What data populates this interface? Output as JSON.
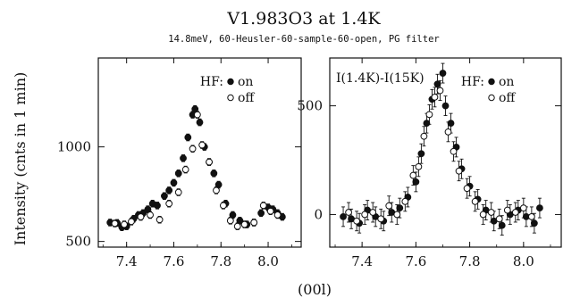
{
  "figure": {
    "title": "V1.983O3 at 1.4K",
    "subtitle": "14.8meV, 60-Heusler-60-sample-60-open, PG filter",
    "ylabel": "Intensity (cnts in 1 min)",
    "xlabel": "(00l)"
  },
  "chart_data": [
    {
      "type": "scatter",
      "panel": "left",
      "title": "",
      "xlabel": "(00l)",
      "ylabel": "Intensity (cnts in 1 min)",
      "xlim": [
        7.28,
        8.14
      ],
      "ylim": [
        470,
        1470
      ],
      "xticks": [
        7.4,
        7.6,
        7.8,
        8.0
      ],
      "xticklabels": [
        "7.4",
        "7.6",
        "7.8",
        "8.0"
      ],
      "yticks": [
        500,
        1000
      ],
      "yticklabels": [
        "500",
        "1000"
      ],
      "grid": false,
      "legend": {
        "placement": "top-right",
        "title": "HF:",
        "entries": [
          "on",
          "off"
        ]
      },
      "series": [
        {
          "name": "on",
          "marker": "filled-circle",
          "x": [
            7.33,
            7.36,
            7.38,
            7.4,
            7.43,
            7.45,
            7.47,
            7.49,
            7.51,
            7.53,
            7.56,
            7.58,
            7.6,
            7.62,
            7.64,
            7.66,
            7.68,
            7.69,
            7.71,
            7.73,
            7.75,
            7.77,
            7.79,
            7.82,
            7.85,
            7.88,
            7.91,
            7.94,
            7.97,
            8.0,
            8.02,
            8.04,
            8.06
          ],
          "y": [
            600,
            598,
            575,
            580,
            620,
            640,
            650,
            670,
            700,
            690,
            740,
            770,
            810,
            860,
            940,
            1050,
            1170,
            1200,
            1130,
            1000,
            920,
            860,
            800,
            700,
            640,
            610,
            590,
            600,
            650,
            680,
            670,
            650,
            630
          ],
          "yerr": 18
        },
        {
          "name": "off",
          "marker": "open-circle",
          "x": [
            7.35,
            7.39,
            7.42,
            7.46,
            7.5,
            7.54,
            7.58,
            7.62,
            7.65,
            7.68,
            7.7,
            7.72,
            7.75,
            7.78,
            7.81,
            7.84,
            7.87,
            7.9,
            7.94,
            7.98,
            8.01,
            8.04
          ],
          "y": [
            595,
            590,
            605,
            630,
            640,
            615,
            700,
            760,
            880,
            990,
            1170,
            1010,
            920,
            770,
            690,
            610,
            580,
            590,
            600,
            690,
            660,
            640
          ],
          "yerr": 18
        }
      ]
    },
    {
      "type": "scatter",
      "panel": "right",
      "title": "",
      "annotation": "I(1.4K)-I(15K)",
      "xlabel": "(00l)",
      "ylabel": "",
      "xlim": [
        7.28,
        8.14
      ],
      "ylim": [
        -150,
        720
      ],
      "xticks": [
        7.4,
        7.6,
        7.8,
        8.0
      ],
      "xticklabels": [
        "7.4",
        "7.6",
        "7.8",
        "8.0"
      ],
      "yticks": [
        0,
        500
      ],
      "yticklabels": [
        "0",
        "500"
      ],
      "grid": false,
      "legend": {
        "placement": "top-right",
        "title": "HF:",
        "entries": [
          "on",
          "off"
        ]
      },
      "series": [
        {
          "name": "on",
          "marker": "filled-circle",
          "x": [
            7.33,
            7.36,
            7.39,
            7.42,
            7.45,
            7.48,
            7.51,
            7.54,
            7.57,
            7.6,
            7.62,
            7.64,
            7.66,
            7.68,
            7.7,
            7.71,
            7.73,
            7.75,
            7.77,
            7.8,
            7.83,
            7.86,
            7.89,
            7.92,
            7.95,
            7.98,
            8.01,
            8.04,
            8.06
          ],
          "y": [
            -10,
            -20,
            -40,
            20,
            -10,
            -30,
            10,
            30,
            80,
            150,
            280,
            420,
            530,
            600,
            650,
            500,
            420,
            310,
            210,
            130,
            70,
            20,
            -30,
            -50,
            0,
            20,
            -10,
            -40,
            30
          ],
          "yerr": 45
        },
        {
          "name": "off",
          "marker": "open-circle",
          "x": [
            7.35,
            7.38,
            7.41,
            7.44,
            7.47,
            7.5,
            7.53,
            7.56,
            7.59,
            7.61,
            7.63,
            7.65,
            7.67,
            7.69,
            7.72,
            7.74,
            7.76,
            7.79,
            7.82,
            7.85,
            7.88,
            7.91,
            7.94,
            7.97,
            8.0,
            8.03
          ],
          "y": [
            10,
            -30,
            0,
            10,
            -20,
            40,
            0,
            60,
            180,
            220,
            360,
            460,
            540,
            570,
            380,
            290,
            200,
            120,
            60,
            0,
            10,
            -20,
            20,
            10,
            30,
            -10
          ],
          "yerr": 45
        }
      ]
    }
  ]
}
